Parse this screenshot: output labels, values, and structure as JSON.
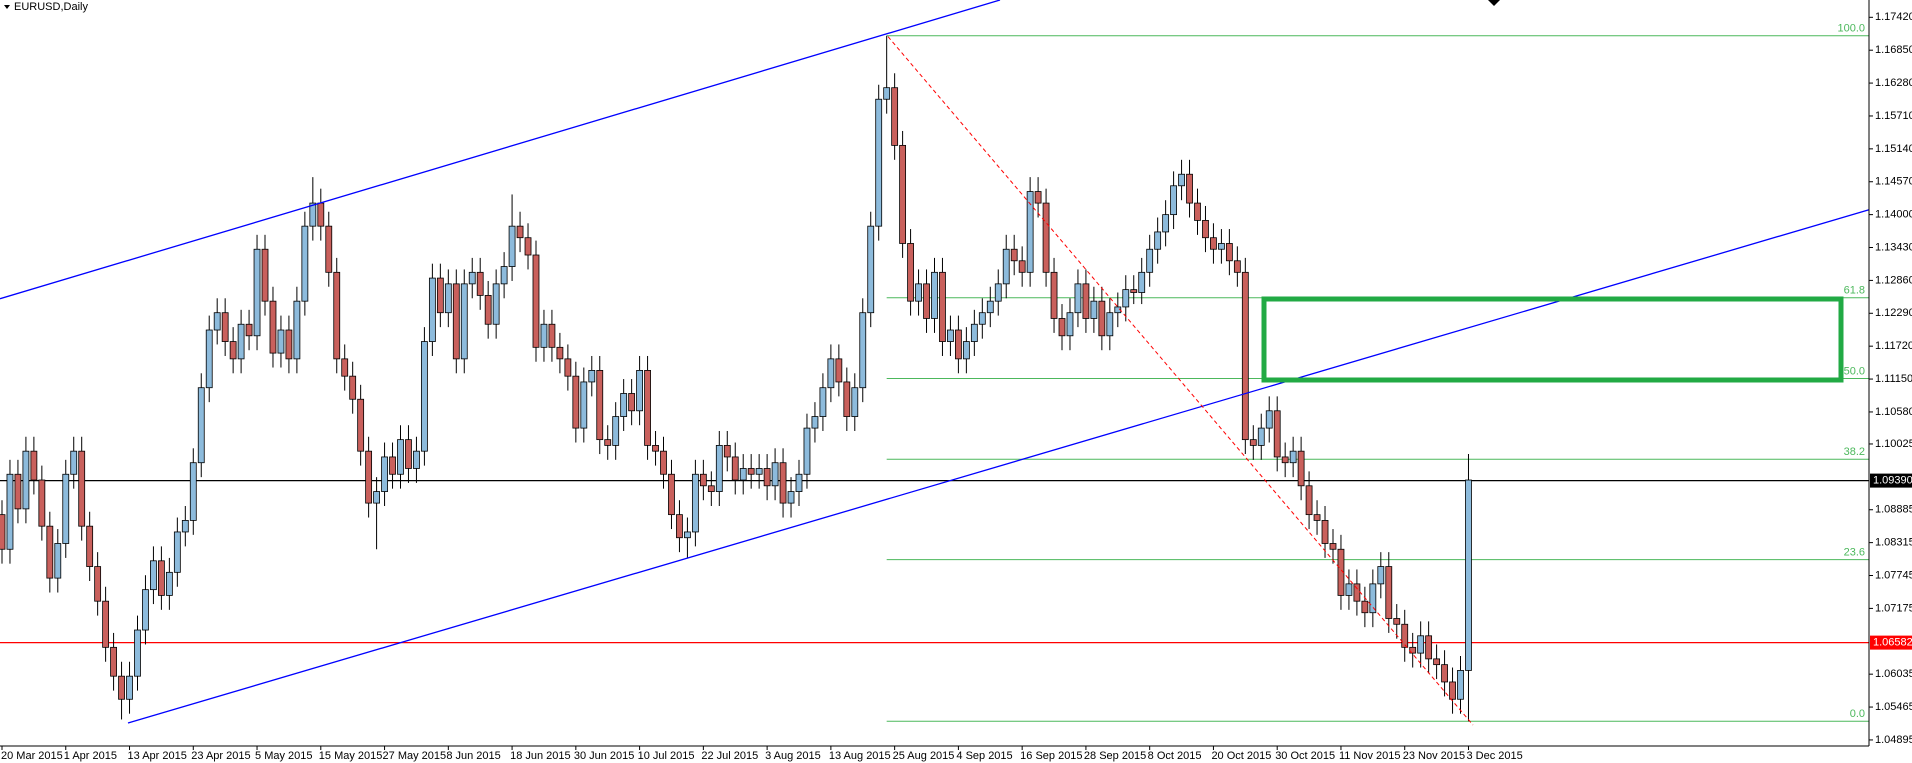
{
  "chart_data": {
    "type": "candlestick",
    "title": "EURUSD,Daily",
    "categories": [
      "20 Mar 2015",
      null,
      null,
      null,
      null,
      null,
      null,
      null,
      "1 Apr 2015",
      null,
      null,
      null,
      null,
      null,
      null,
      null,
      "13 Apr 2015",
      null,
      null,
      null,
      null,
      null,
      null,
      null,
      "23 Apr 2015",
      null,
      null,
      null,
      null,
      null,
      null,
      null,
      "5 May 2015",
      null,
      null,
      null,
      null,
      null,
      null,
      null,
      "15 May 2015",
      null,
      null,
      null,
      null,
      null,
      null,
      null,
      "27 May 2015",
      null,
      null,
      null,
      null,
      null,
      null,
      null,
      "8 Jun 2015",
      null,
      null,
      null,
      null,
      null,
      null,
      null,
      "18 Jun 2015",
      null,
      null,
      null,
      null,
      null,
      null,
      null,
      "30 Jun 2015",
      null,
      null,
      null,
      null,
      null,
      null,
      null,
      "10 Jul 2015",
      null,
      null,
      null,
      null,
      null,
      null,
      null,
      "22 Jul 2015",
      null,
      null,
      null,
      null,
      null,
      null,
      null,
      "3 Aug 2015",
      null,
      null,
      null,
      null,
      null,
      null,
      null,
      "13 Aug 2015",
      null,
      null,
      null,
      null,
      null,
      null,
      null,
      "25 Aug 2015",
      null,
      null,
      null,
      null,
      null,
      null,
      null,
      "4 Sep 2015",
      null,
      null,
      null,
      null,
      null,
      null,
      null,
      "16 Sep 2015",
      null,
      null,
      null,
      null,
      null,
      null,
      null,
      "28 Sep 2015",
      null,
      null,
      null,
      null,
      null,
      null,
      null,
      "8 Oct 2015",
      null,
      null,
      null,
      null,
      null,
      null,
      null,
      "20 Oct 2015",
      null,
      null,
      null,
      null,
      null,
      null,
      null,
      "30 Oct 2015",
      null,
      null,
      null,
      null,
      null,
      null,
      null,
      "11 Nov 2015",
      null,
      null,
      null,
      null,
      null,
      null,
      null,
      "23 Nov 2015",
      null,
      null,
      null,
      null,
      null,
      null,
      null,
      "3 Dec 2015"
    ],
    "ohlc": [
      [
        1.088,
        1.0905,
        1.0795,
        1.082
      ],
      [
        1.082,
        1.0975,
        1.0795,
        1.095
      ],
      [
        1.095,
        1.0975,
        1.0865,
        1.089
      ],
      [
        1.089,
        1.1015,
        1.0865,
        1.099
      ],
      [
        1.099,
        1.1015,
        1.0915,
        1.094
      ],
      [
        1.094,
        1.0965,
        1.0835,
        1.086
      ],
      [
        1.086,
        1.0885,
        1.0745,
        1.077
      ],
      [
        1.077,
        1.0855,
        1.0745,
        1.083
      ],
      [
        1.083,
        1.0975,
        1.0805,
        1.095
      ],
      [
        1.095,
        1.1015,
        1.0925,
        1.099
      ],
      [
        1.099,
        1.1015,
        1.0835,
        1.086
      ],
      [
        1.086,
        1.0885,
        1.0765,
        1.079
      ],
      [
        1.079,
        1.0815,
        1.0705,
        1.073
      ],
      [
        1.073,
        1.0755,
        1.0625,
        1.065
      ],
      [
        1.065,
        1.0675,
        1.0575,
        1.06
      ],
      [
        1.06,
        1.0625,
        1.0525,
        1.056
      ],
      [
        1.056,
        1.0625,
        1.0535,
        1.06
      ],
      [
        1.06,
        1.0705,
        1.0575,
        1.068
      ],
      [
        1.068,
        1.0775,
        1.0655,
        1.075
      ],
      [
        1.075,
        1.0825,
        1.0725,
        1.08
      ],
      [
        1.08,
        1.0825,
        1.0715,
        1.074
      ],
      [
        1.074,
        1.0805,
        1.0715,
        1.078
      ],
      [
        1.078,
        1.0875,
        1.0755,
        1.085
      ],
      [
        1.085,
        1.0895,
        1.0825,
        1.087
      ],
      [
        1.087,
        1.0995,
        1.0845,
        1.097
      ],
      [
        1.097,
        1.1125,
        1.0945,
        1.11
      ],
      [
        1.11,
        1.1225,
        1.1075,
        1.12
      ],
      [
        1.12,
        1.1255,
        1.1175,
        1.123
      ],
      [
        1.123,
        1.1255,
        1.1155,
        1.118
      ],
      [
        1.118,
        1.1205,
        1.1125,
        1.115
      ],
      [
        1.115,
        1.1235,
        1.1125,
        1.121
      ],
      [
        1.121,
        1.1235,
        1.1165,
        1.119
      ],
      [
        1.119,
        1.1365,
        1.1165,
        1.134
      ],
      [
        1.134,
        1.1365,
        1.1225,
        1.125
      ],
      [
        1.125,
        1.1275,
        1.1135,
        1.116
      ],
      [
        1.116,
        1.1225,
        1.1135,
        1.12
      ],
      [
        1.12,
        1.1225,
        1.1125,
        1.115
      ],
      [
        1.115,
        1.1275,
        1.1125,
        1.125
      ],
      [
        1.125,
        1.1405,
        1.1225,
        1.138
      ],
      [
        1.138,
        1.1465,
        1.1355,
        1.142
      ],
      [
        1.142,
        1.1445,
        1.1355,
        1.138
      ],
      [
        1.138,
        1.1405,
        1.1275,
        1.13
      ],
      [
        1.13,
        1.1325,
        1.1125,
        1.115
      ],
      [
        1.115,
        1.1175,
        1.1095,
        1.112
      ],
      [
        1.112,
        1.1145,
        1.1055,
        1.108
      ],
      [
        1.108,
        1.1105,
        1.0965,
        1.099
      ],
      [
        1.099,
        1.1015,
        1.0875,
        1.09
      ],
      [
        1.09,
        1.0945,
        1.082,
        1.092
      ],
      [
        1.092,
        1.1005,
        1.0895,
        1.098
      ],
      [
        1.098,
        1.1005,
        1.0925,
        1.095
      ],
      [
        1.095,
        1.1035,
        1.0925,
        1.101
      ],
      [
        1.101,
        1.1035,
        1.0935,
        1.096
      ],
      [
        1.096,
        1.1015,
        1.0935,
        1.099
      ],
      [
        1.099,
        1.1205,
        1.0965,
        1.118
      ],
      [
        1.118,
        1.1315,
        1.1155,
        1.129
      ],
      [
        1.129,
        1.1315,
        1.1205,
        1.123
      ],
      [
        1.123,
        1.1305,
        1.1205,
        1.128
      ],
      [
        1.128,
        1.1305,
        1.1125,
        1.115
      ],
      [
        1.115,
        1.1305,
        1.1125,
        1.128
      ],
      [
        1.128,
        1.1325,
        1.1255,
        1.13
      ],
      [
        1.13,
        1.1325,
        1.1235,
        1.126
      ],
      [
        1.126,
        1.1285,
        1.1185,
        1.121
      ],
      [
        1.121,
        1.1305,
        1.1185,
        1.128
      ],
      [
        1.128,
        1.1335,
        1.1255,
        1.131
      ],
      [
        1.131,
        1.1435,
        1.1285,
        1.138
      ],
      [
        1.138,
        1.1405,
        1.1335,
        1.136
      ],
      [
        1.136,
        1.1385,
        1.1305,
        1.133
      ],
      [
        1.133,
        1.1355,
        1.1145,
        1.117
      ],
      [
        1.117,
        1.1235,
        1.1145,
        1.121
      ],
      [
        1.121,
        1.1235,
        1.1145,
        1.117
      ],
      [
        1.117,
        1.1195,
        1.1125,
        1.115
      ],
      [
        1.115,
        1.1175,
        1.1095,
        1.112
      ],
      [
        1.112,
        1.1145,
        1.1005,
        1.103
      ],
      [
        1.103,
        1.1135,
        1.1005,
        1.111
      ],
      [
        1.111,
        1.1155,
        1.1085,
        1.113
      ],
      [
        1.113,
        1.1155,
        1.0985,
        1.101
      ],
      [
        1.101,
        1.1035,
        1.0975,
        1.1
      ],
      [
        1.1,
        1.1075,
        1.0975,
        1.105
      ],
      [
        1.105,
        1.1115,
        1.1025,
        1.109
      ],
      [
        1.109,
        1.1115,
        1.1035,
        1.106
      ],
      [
        1.106,
        1.1155,
        1.1035,
        1.113
      ],
      [
        1.113,
        1.1155,
        1.0975,
        1.1
      ],
      [
        1.1,
        1.1025,
        1.0965,
        1.099
      ],
      [
        1.099,
        1.1015,
        1.0925,
        1.095
      ],
      [
        1.095,
        1.0975,
        1.0855,
        1.088
      ],
      [
        1.088,
        1.0905,
        1.0815,
        1.084
      ],
      [
        1.084,
        1.0875,
        1.0805,
        1.085
      ],
      [
        1.085,
        1.0975,
        1.0825,
        1.095
      ],
      [
        1.095,
        1.0975,
        1.0905,
        1.093
      ],
      [
        1.093,
        1.0955,
        1.0895,
        1.092
      ],
      [
        1.092,
        1.1025,
        1.0895,
        1.1
      ],
      [
        1.1,
        1.1025,
        1.0955,
        1.098
      ],
      [
        1.098,
        1.1005,
        1.0915,
        1.094
      ],
      [
        1.094,
        1.0985,
        1.0915,
        1.096
      ],
      [
        1.096,
        1.0985,
        1.0925,
        1.095
      ],
      [
        1.095,
        1.0985,
        1.0925,
        1.096
      ],
      [
        1.096,
        1.0985,
        1.0905,
        1.093
      ],
      [
        1.093,
        1.0995,
        1.0905,
        1.097
      ],
      [
        1.097,
        1.0995,
        1.0875,
        1.09
      ],
      [
        1.09,
        1.0945,
        1.0875,
        1.092
      ],
      [
        1.092,
        1.0975,
        1.0895,
        1.095
      ],
      [
        1.095,
        1.1055,
        1.0925,
        1.103
      ],
      [
        1.103,
        1.1075,
        1.1005,
        1.105
      ],
      [
        1.105,
        1.1125,
        1.1025,
        1.11
      ],
      [
        1.11,
        1.1175,
        1.1075,
        1.115
      ],
      [
        1.115,
        1.1175,
        1.1085,
        1.111
      ],
      [
        1.111,
        1.1135,
        1.1025,
        1.105
      ],
      [
        1.105,
        1.1125,
        1.1025,
        1.11
      ],
      [
        1.11,
        1.1255,
        1.1075,
        1.123
      ],
      [
        1.123,
        1.1405,
        1.1205,
        1.138
      ],
      [
        1.138,
        1.1625,
        1.1355,
        1.16
      ],
      [
        1.16,
        1.171,
        1.1575,
        1.162
      ],
      [
        1.162,
        1.1645,
        1.1495,
        1.152
      ],
      [
        1.152,
        1.1545,
        1.1325,
        1.135
      ],
      [
        1.135,
        1.1375,
        1.1225,
        1.125
      ],
      [
        1.125,
        1.1305,
        1.1225,
        1.128
      ],
      [
        1.128,
        1.1305,
        1.1195,
        1.122
      ],
      [
        1.122,
        1.1325,
        1.1195,
        1.13
      ],
      [
        1.13,
        1.1325,
        1.1155,
        1.118
      ],
      [
        1.118,
        1.1225,
        1.1155,
        1.12
      ],
      [
        1.12,
        1.1225,
        1.1125,
        1.115
      ],
      [
        1.115,
        1.1205,
        1.1125,
        1.118
      ],
      [
        1.118,
        1.1235,
        1.1155,
        1.121
      ],
      [
        1.121,
        1.1255,
        1.1185,
        1.123
      ],
      [
        1.123,
        1.1275,
        1.1205,
        1.125
      ],
      [
        1.125,
        1.1305,
        1.1225,
        1.128
      ],
      [
        1.128,
        1.1365,
        1.1255,
        1.134
      ],
      [
        1.134,
        1.1365,
        1.1295,
        1.132
      ],
      [
        1.132,
        1.1345,
        1.1275,
        1.13
      ],
      [
        1.13,
        1.1465,
        1.1275,
        1.144
      ],
      [
        1.144,
        1.1465,
        1.1395,
        1.142
      ],
      [
        1.142,
        1.1445,
        1.1275,
        1.13
      ],
      [
        1.13,
        1.1325,
        1.1195,
        1.122
      ],
      [
        1.122,
        1.1245,
        1.1165,
        1.119
      ],
      [
        1.119,
        1.1255,
        1.1165,
        1.123
      ],
      [
        1.123,
        1.1305,
        1.1205,
        1.128
      ],
      [
        1.128,
        1.1305,
        1.1195,
        1.122
      ],
      [
        1.122,
        1.1275,
        1.1195,
        1.125
      ],
      [
        1.125,
        1.1275,
        1.1165,
        1.119
      ],
      [
        1.119,
        1.1255,
        1.1165,
        1.123
      ],
      [
        1.123,
        1.1265,
        1.1205,
        1.124
      ],
      [
        1.124,
        1.1295,
        1.1215,
        1.127
      ],
      [
        1.127,
        1.1295,
        1.1245,
        1.1265
      ],
      [
        1.1265,
        1.1325,
        1.1245,
        1.13
      ],
      [
        1.13,
        1.1365,
        1.1275,
        1.134
      ],
      [
        1.134,
        1.1395,
        1.1315,
        1.137
      ],
      [
        1.137,
        1.1425,
        1.1345,
        1.14
      ],
      [
        1.14,
        1.1475,
        1.1375,
        1.145
      ],
      [
        1.145,
        1.1495,
        1.1425,
        1.147
      ],
      [
        1.147,
        1.1495,
        1.1395,
        1.142
      ],
      [
        1.142,
        1.1445,
        1.1365,
        1.139
      ],
      [
        1.139,
        1.1415,
        1.1335,
        1.136
      ],
      [
        1.136,
        1.1385,
        1.1315,
        1.134
      ],
      [
        1.134,
        1.1375,
        1.1315,
        1.135
      ],
      [
        1.135,
        1.1375,
        1.1295,
        1.132
      ],
      [
        1.132,
        1.1345,
        1.1275,
        1.13
      ],
      [
        1.13,
        1.1325,
        1.0985,
        1.101
      ],
      [
        1.101,
        1.1035,
        1.0975,
        1.1
      ],
      [
        1.1,
        1.1055,
        1.0975,
        1.103
      ],
      [
        1.103,
        1.1085,
        1.1005,
        1.106
      ],
      [
        1.106,
        1.1085,
        1.0955,
        1.098
      ],
      [
        1.098,
        1.1005,
        1.0945,
        1.097
      ],
      [
        1.097,
        1.1015,
        1.0945,
        1.099
      ],
      [
        1.099,
        1.1015,
        1.0905,
        1.093
      ],
      [
        1.093,
        1.0955,
        1.0855,
        1.088
      ],
      [
        1.088,
        1.0905,
        1.0845,
        1.087
      ],
      [
        1.087,
        1.0895,
        1.0805,
        1.083
      ],
      [
        1.083,
        1.0855,
        1.0795,
        1.082
      ],
      [
        1.082,
        1.0845,
        1.0715,
        1.074
      ],
      [
        1.074,
        1.0785,
        1.0715,
        1.076
      ],
      [
        1.076,
        1.0785,
        1.0705,
        1.073
      ],
      [
        1.073,
        1.0755,
        1.0685,
        1.071
      ],
      [
        1.071,
        1.0785,
        1.0685,
        1.076
      ],
      [
        1.076,
        1.0815,
        1.0735,
        1.079
      ],
      [
        1.079,
        1.0815,
        1.0675,
        1.07
      ],
      [
        1.07,
        1.0725,
        1.0665,
        1.069
      ],
      [
        1.069,
        1.0715,
        1.0625,
        1.065
      ],
      [
        1.065,
        1.0675,
        1.0615,
        1.064
      ],
      [
        1.064,
        1.0695,
        1.0615,
        1.067
      ],
      [
        1.067,
        1.0695,
        1.0605,
        1.063
      ],
      [
        1.063,
        1.0655,
        1.0595,
        1.062
      ],
      [
        1.062,
        1.0645,
        1.0565,
        1.059
      ],
      [
        1.059,
        1.0615,
        1.0535,
        1.056
      ],
      [
        1.056,
        1.0635,
        1.0535,
        1.061
      ],
      [
        1.061,
        1.0985,
        1.0522,
        1.094
      ]
    ],
    "up_color": "#8dbbdc",
    "down_color": "#c9605c",
    "ylim": [
      1.0479,
      1.1772
    ],
    "yticks": [
      {
        "value": 1.1742,
        "label": "1.17420"
      },
      {
        "value": 1.1685,
        "label": "1.16850"
      },
      {
        "value": 1.1628,
        "label": "1.16280"
      },
      {
        "value": 1.1571,
        "label": "1.15710"
      },
      {
        "value": 1.1514,
        "label": "1.15140"
      },
      {
        "value": 1.1457,
        "label": "1.14570"
      },
      {
        "value": 1.14,
        "label": "1.14000"
      },
      {
        "value": 1.1343,
        "label": "1.13430"
      },
      {
        "value": 1.1286,
        "label": "1.12860"
      },
      {
        "value": 1.1229,
        "label": "1.12290"
      },
      {
        "value": 1.1172,
        "label": "1.11720"
      },
      {
        "value": 1.1115,
        "label": "1.11150"
      },
      {
        "value": 1.1058,
        "label": "1.10580"
      },
      {
        "value": 1.10025,
        "label": "1.10025"
      },
      {
        "value": 1.08885,
        "label": "1.08885"
      },
      {
        "value": 1.08315,
        "label": "1.08315"
      },
      {
        "value": 1.07745,
        "label": "1.07745"
      },
      {
        "value": 1.07175,
        "label": "1.07175"
      },
      {
        "value": 1.06035,
        "label": "1.06035"
      },
      {
        "value": 1.05465,
        "label": "1.05465"
      },
      {
        "value": 1.04895,
        "label": "1.04895"
      }
    ],
    "price_lines": [
      {
        "value": 1.0939,
        "label": "1.09390",
        "color": "#000000"
      },
      {
        "value": 1.06582,
        "label": "1.06582",
        "color": "#ff0000"
      }
    ],
    "fib_levels": [
      {
        "value": 1.171,
        "label": "100.0"
      },
      {
        "value": 1.1256,
        "label": "61.8"
      },
      {
        "value": 1.1116,
        "label": "50.0"
      },
      {
        "value": 1.0976,
        "label": "38.2"
      },
      {
        "value": 1.0802,
        "label": "23.6"
      },
      {
        "value": 1.0522,
        "label": "0.0"
      }
    ],
    "fib_color": "#4cb85c"
  }
}
